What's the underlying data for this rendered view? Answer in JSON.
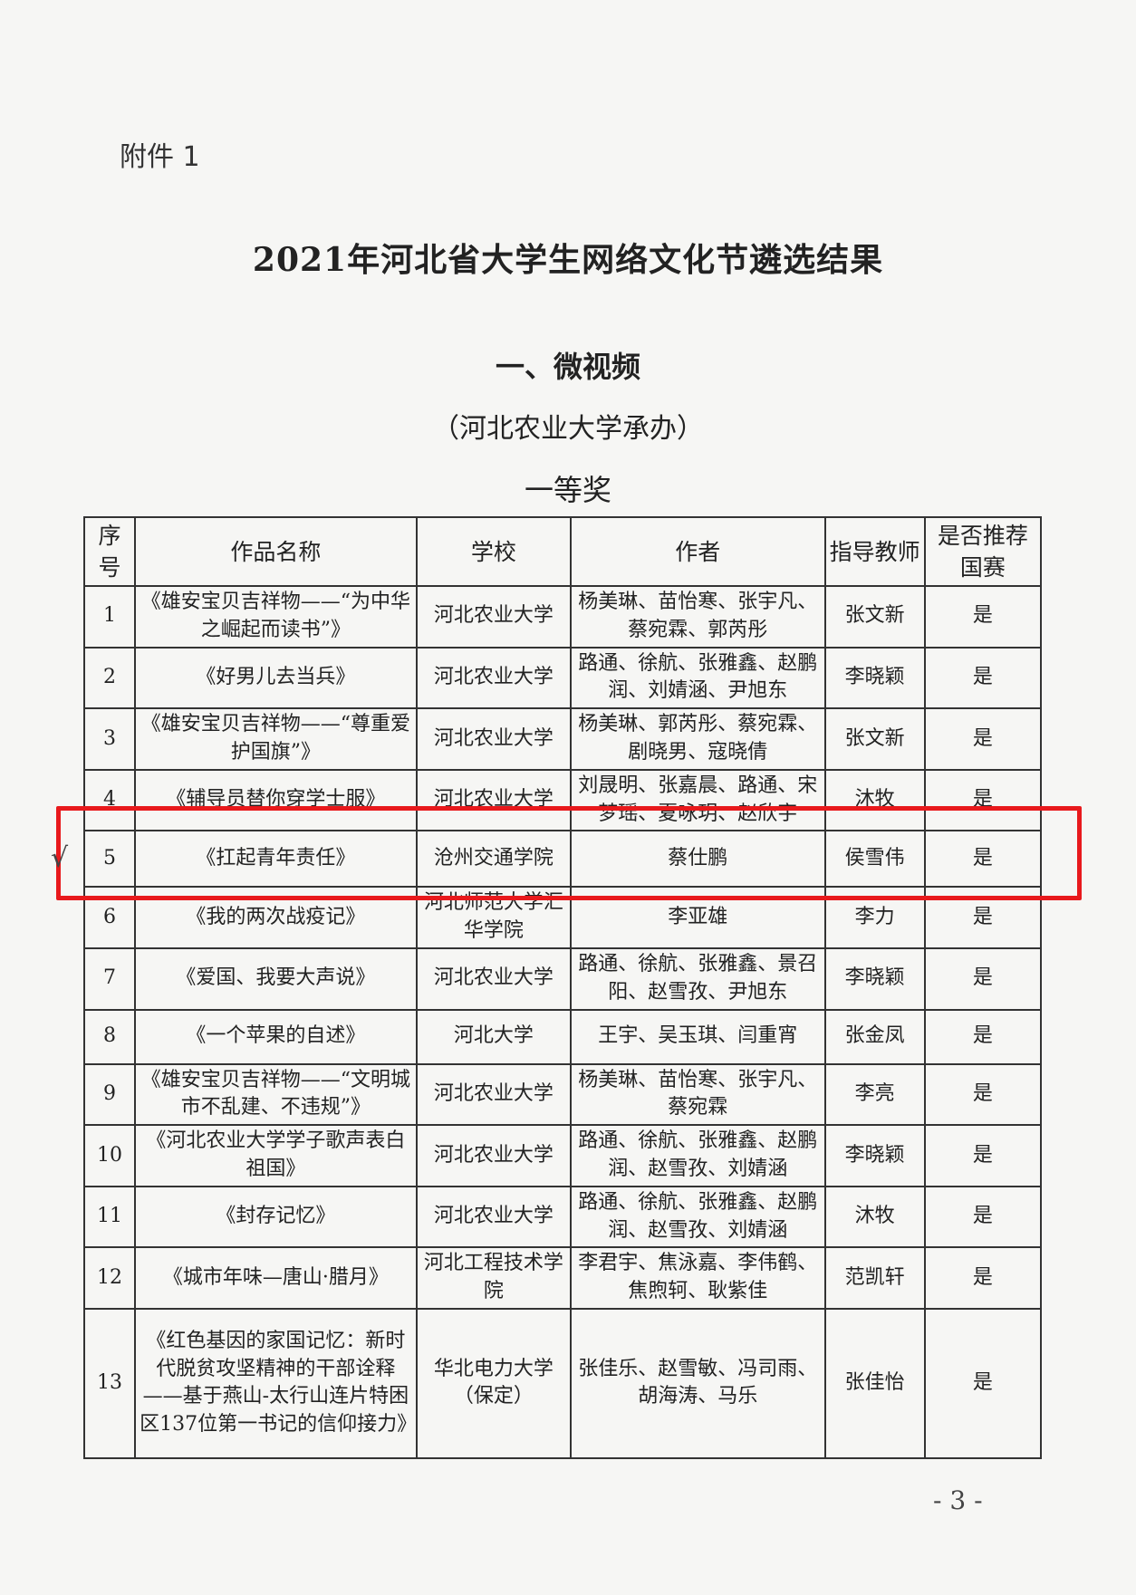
{
  "attachment_label": "附件 1",
  "title": "2021年河北省大学生网络文化节遴选结果",
  "section": "一、微视频",
  "organizer": "（河北农业大学承办）",
  "award_level": "一等奖",
  "table": {
    "headers": [
      "序号",
      "作品名称",
      "学校",
      "作者",
      "指导教师",
      "是否推荐国赛"
    ],
    "rows": [
      {
        "no": "1",
        "title": "《雄安宝贝吉祥物——“为中华之崛起而读书”》",
        "school": "河北农业大学",
        "authors": "杨美琳、苗怡寒、张宇凡、蔡宛霖、郭芮彤",
        "teacher": "张文新",
        "recommend": "是"
      },
      {
        "no": "2",
        "title": "《好男儿去当兵》",
        "school": "河北农业大学",
        "authors": "路通、徐航、张雅鑫、赵鹏润、刘婧涵、尹旭东",
        "teacher": "李晓颖",
        "recommend": "是"
      },
      {
        "no": "3",
        "title": "《雄安宝贝吉祥物——“尊重爱护国旗”》",
        "school": "河北农业大学",
        "authors": "杨美琳、郭芮彤、蔡宛霖、剧晓男、寇晓倩",
        "teacher": "张文新",
        "recommend": "是"
      },
      {
        "no": "4",
        "title": "《辅导员替你穿学士服》",
        "school": "河北农业大学",
        "authors": "刘晟明、张嘉晨、路通、宋梦瑶、夏咏玥、赵欣宇",
        "teacher": "沐牧",
        "recommend": "是"
      },
      {
        "no": "5",
        "title": "《扛起青年责任》",
        "school": "沧州交通学院",
        "authors": "蔡仕鹏",
        "teacher": "侯雪伟",
        "recommend": "是"
      },
      {
        "no": "6",
        "title": "《我的两次战疫记》",
        "school": "河北师范大学汇华学院",
        "authors": "李亚雄",
        "teacher": "李力",
        "recommend": "是"
      },
      {
        "no": "7",
        "title": "《爱国、我要大声说》",
        "school": "河北农业大学",
        "authors": "路通、徐航、张雅鑫、景召阳、赵雪孜、尹旭东",
        "teacher": "李晓颖",
        "recommend": "是"
      },
      {
        "no": "8",
        "title": "《一个苹果的自述》",
        "school": "河北大学",
        "authors": "王宇、吴玉琪、闫重宵",
        "teacher": "张金凤",
        "recommend": "是"
      },
      {
        "no": "9",
        "title": "《雄安宝贝吉祥物——“文明城市不乱建、不违规”》",
        "school": "河北农业大学",
        "authors": "杨美琳、苗怡寒、张宇凡、蔡宛霖",
        "teacher": "李亮",
        "recommend": "是"
      },
      {
        "no": "10",
        "title": "《河北农业大学学子歌声表白祖国》",
        "school": "河北农业大学",
        "authors": "路通、徐航、张雅鑫、赵鹏润、赵雪孜、刘婧涵",
        "teacher": "李晓颖",
        "recommend": "是"
      },
      {
        "no": "11",
        "title": "《封存记忆》",
        "school": "河北农业大学",
        "authors": "路通、徐航、张雅鑫、赵鹏润、赵雪孜、刘婧涵",
        "teacher": "沐牧",
        "recommend": "是"
      },
      {
        "no": "12",
        "title": "《城市年味—唐山·腊月》",
        "school": "河北工程技术学院",
        "authors": "李君宇、焦泳嘉、李伟鹤、焦煦轲、耿紫佳",
        "teacher": "范凯轩",
        "recommend": "是"
      },
      {
        "no": "13",
        "title": "《红色基因的家国记忆：新时代脱贫攻坚精神的干部诠释——基于燕山-太行山连片特困区137位第一书记的信仰接力》",
        "school": "华北电力大学（保定）",
        "authors": "张佳乐、赵雪敏、冯司雨、胡海涛、马乐",
        "teacher": "张佳怡",
        "recommend": "是"
      }
    ]
  },
  "highlight_color": "#e8191c",
  "check_mark": "√",
  "page_number": "- 3 -"
}
